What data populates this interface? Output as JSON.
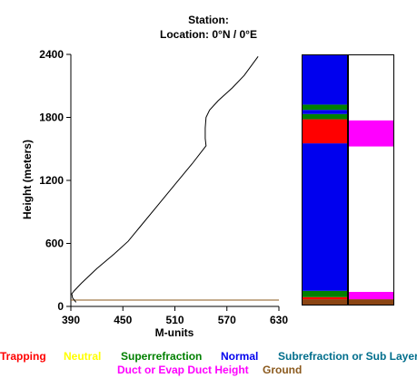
{
  "header": {
    "station": "Station:",
    "location": "Location:   0°N /   0°E"
  },
  "chart_data": {
    "type": "line",
    "xlabel": "M-units",
    "ylabel": "Height (meters)",
    "xlim": [
      390,
      630
    ],
    "ylim": [
      0,
      2400
    ],
    "xticks": [
      "390",
      "450",
      "510",
      "570",
      "630"
    ],
    "yticks": [
      "0",
      "600",
      "1200",
      "1800",
      "2400"
    ],
    "series": [
      {
        "color": "#000000",
        "points": [
          [
            396,
            40
          ],
          [
            392,
            80
          ],
          [
            391,
            120
          ],
          [
            394,
            150
          ],
          [
            402,
            220
          ],
          [
            420,
            360
          ],
          [
            440,
            500
          ],
          [
            456,
            620
          ],
          [
            470,
            760
          ],
          [
            490,
            960
          ],
          [
            510,
            1160
          ],
          [
            530,
            1360
          ],
          [
            546,
            1530
          ],
          [
            545,
            1600
          ],
          [
            545,
            1700
          ],
          [
            546,
            1800
          ],
          [
            550,
            1870
          ],
          [
            560,
            1960
          ],
          [
            576,
            2080
          ],
          [
            590,
            2200
          ],
          [
            606,
            2380
          ]
        ]
      }
    ],
    "ground_line": {
      "color": "#8B5A1E",
      "height_m": 60
    },
    "columns": [
      {
        "segments": [
          {
            "from": 0,
            "to": 60,
            "color": "#8B4513",
            "class": "Ground"
          },
          {
            "from": 60,
            "to": 80,
            "color": "#FF0000",
            "class": "Trapping"
          },
          {
            "from": 80,
            "to": 140,
            "color": "#008000",
            "class": "Superrefraction"
          },
          {
            "from": 140,
            "to": 1550,
            "color": "#0000EE",
            "class": "Normal"
          },
          {
            "from": 1550,
            "to": 1780,
            "color": "#FF0000",
            "class": "Trapping"
          },
          {
            "from": 1780,
            "to": 1830,
            "color": "#008000",
            "class": "Superrefraction"
          },
          {
            "from": 1830,
            "to": 1870,
            "color": "#0000EE",
            "class": "Normal"
          },
          {
            "from": 1870,
            "to": 1920,
            "color": "#008000",
            "class": "Superrefraction"
          },
          {
            "from": 1920,
            "to": 2400,
            "color": "#0000EE",
            "class": "Normal"
          }
        ]
      },
      {
        "segments": [
          {
            "from": 0,
            "to": 60,
            "color": "#8B4513",
            "class": "Ground"
          },
          {
            "from": 60,
            "to": 130,
            "color": "#FF00FF",
            "class": "Duct or Evap Duct Height"
          },
          {
            "from": 130,
            "to": 1520,
            "color": "#FFFFFF",
            "class": ""
          },
          {
            "from": 1520,
            "to": 1770,
            "color": "#FF00FF",
            "class": "Duct or Evap Duct Height"
          },
          {
            "from": 1770,
            "to": 2400,
            "color": "#FFFFFF",
            "class": ""
          }
        ]
      }
    ],
    "legend": [
      {
        "label": "Trapping",
        "color": "#FF0000"
      },
      {
        "label": "Neutral",
        "color": "#FFFF00"
      },
      {
        "label": "Superrefraction",
        "color": "#008000"
      },
      {
        "label": "Normal",
        "color": "#0000EE"
      },
      {
        "label": "Subrefraction or Sub Layer",
        "color": "#006E8C"
      },
      {
        "label": "Duct or Evap Duct Height",
        "color": "#FF00FF"
      },
      {
        "label": "Ground",
        "color": "#8B5A1E"
      }
    ]
  }
}
